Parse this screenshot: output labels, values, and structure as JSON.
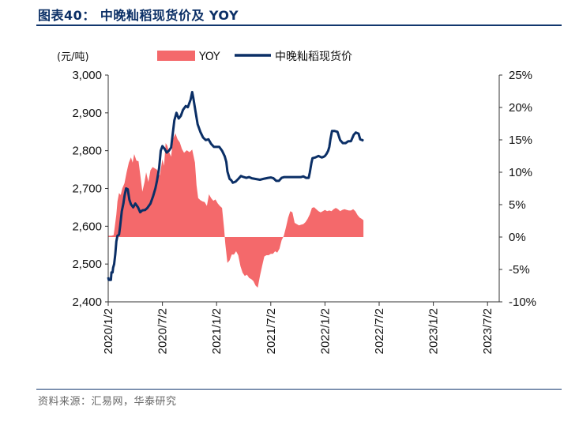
{
  "header": {
    "title": "图表40：  中晚籼稻现货价及 YOY"
  },
  "footer": {
    "source": "资料来源：汇易网，华泰研究"
  },
  "chart_data": {
    "type": "bar+line",
    "title": "中晚籼稻现货价及 YOY",
    "unit_left": "(元/吨)",
    "left_axis": {
      "min": 2400,
      "max": 3000,
      "ticks": [
        "2,400",
        "2,500",
        "2,600",
        "2,700",
        "2,800",
        "2,900",
        "3,000"
      ]
    },
    "right_axis": {
      "min": -10,
      "max": 25,
      "ticks": [
        "-10%",
        "-5%",
        "0%",
        "5%",
        "10%",
        "15%",
        "20%",
        "25%"
      ]
    },
    "x_ticks": [
      "2020/1/2",
      "2020/7/2",
      "2021/1/2",
      "2021/7/2",
      "2022/1/2",
      "2022/7/2",
      "2023/1/2",
      "2023/7/2"
    ],
    "legend": [
      {
        "name": "YOY",
        "color": "#f4696b",
        "kind": "bar"
      },
      {
        "name": "中晚籼稻现货价",
        "color": "#0b2f66",
        "kind": "line"
      }
    ],
    "series": [
      {
        "name": "中晚籼稻现货价",
        "axis": "left",
        "color": "#0b2f66",
        "points": [
          [
            0.0,
            2465
          ],
          [
            0.01,
            2458
          ],
          [
            0.05,
            2458
          ],
          [
            0.06,
            2478
          ],
          [
            0.08,
            2478
          ],
          [
            0.09,
            2490
          ],
          [
            0.11,
            2500
          ],
          [
            0.13,
            2525
          ],
          [
            0.15,
            2560
          ],
          [
            0.17,
            2575
          ],
          [
            0.2,
            2578
          ],
          [
            0.22,
            2600
          ],
          [
            0.25,
            2640
          ],
          [
            0.28,
            2660
          ],
          [
            0.3,
            2680
          ],
          [
            0.33,
            2700
          ],
          [
            0.36,
            2698
          ],
          [
            0.39,
            2670
          ],
          [
            0.42,
            2658
          ],
          [
            0.46,
            2650
          ],
          [
            0.5,
            2660
          ],
          [
            0.55,
            2650
          ],
          [
            0.59,
            2637
          ],
          [
            0.63,
            2642
          ],
          [
            0.68,
            2643
          ],
          [
            0.72,
            2648
          ],
          [
            0.78,
            2660
          ],
          [
            0.83,
            2680
          ],
          [
            0.87,
            2700
          ],
          [
            0.9,
            2720
          ],
          [
            0.94,
            2755
          ],
          [
            0.97,
            2800
          ],
          [
            1.0,
            2812
          ],
          [
            1.04,
            2805
          ],
          [
            1.08,
            2795
          ],
          [
            1.12,
            2800
          ],
          [
            1.16,
            2808
          ],
          [
            1.22,
            2880
          ],
          [
            1.26,
            2900
          ],
          [
            1.3,
            2885
          ],
          [
            1.34,
            2892
          ],
          [
            1.38,
            2908
          ],
          [
            1.43,
            2918
          ],
          [
            1.47,
            2915
          ],
          [
            1.52,
            2935
          ],
          [
            1.55,
            2955
          ],
          [
            1.57,
            2940
          ],
          [
            1.61,
            2905
          ],
          [
            1.65,
            2870
          ],
          [
            1.7,
            2850
          ],
          [
            1.75,
            2835
          ],
          [
            1.8,
            2828
          ],
          [
            1.85,
            2830
          ],
          [
            1.9,
            2818
          ],
          [
            1.95,
            2810
          ],
          [
            2.0,
            2810
          ],
          [
            2.05,
            2810
          ],
          [
            2.1,
            2800
          ],
          [
            2.15,
            2785
          ],
          [
            2.18,
            2770
          ],
          [
            2.2,
            2745
          ],
          [
            2.22,
            2735
          ],
          [
            2.24,
            2725
          ],
          [
            2.27,
            2722
          ],
          [
            2.3,
            2715
          ],
          [
            2.35,
            2718
          ],
          [
            2.4,
            2725
          ],
          [
            2.45,
            2733
          ],
          [
            2.5,
            2730
          ],
          [
            2.55,
            2728
          ],
          [
            2.6,
            2730
          ],
          [
            2.65,
            2727
          ],
          [
            2.72,
            2725
          ],
          [
            2.8,
            2723
          ],
          [
            2.88,
            2726
          ],
          [
            2.95,
            2728
          ],
          [
            3.0,
            2729
          ],
          [
            3.05,
            2727
          ],
          [
            3.1,
            2720
          ],
          [
            3.15,
            2720
          ],
          [
            3.2,
            2728
          ],
          [
            3.25,
            2730
          ],
          [
            3.32,
            2730
          ],
          [
            3.4,
            2730
          ],
          [
            3.5,
            2730
          ],
          [
            3.56,
            2730
          ],
          [
            3.6,
            2732
          ],
          [
            3.65,
            2728
          ],
          [
            3.7,
            2728
          ],
          [
            3.72,
            2742
          ],
          [
            3.75,
            2768
          ],
          [
            3.77,
            2780
          ],
          [
            3.82,
            2782
          ],
          [
            3.88,
            2786
          ],
          [
            3.94,
            2782
          ],
          [
            3.98,
            2784
          ],
          [
            4.0,
            2786
          ],
          [
            4.03,
            2792
          ],
          [
            4.06,
            2800
          ],
          [
            4.08,
            2810
          ],
          [
            4.1,
            2830
          ],
          [
            4.13,
            2852
          ],
          [
            4.18,
            2852
          ],
          [
            4.23,
            2850
          ],
          [
            4.28,
            2828
          ],
          [
            4.33,
            2820
          ],
          [
            4.38,
            2820
          ],
          [
            4.43,
            2825
          ],
          [
            4.48,
            2825
          ],
          [
            4.53,
            2842
          ],
          [
            4.57,
            2848
          ],
          [
            4.62,
            2845
          ],
          [
            4.65,
            2830
          ],
          [
            4.69,
            2828
          ],
          [
            4.71,
            2826
          ]
        ]
      },
      {
        "name": "YOY",
        "axis": "right",
        "color": "#f4696b",
        "points": [
          [
            0.0,
            0.2
          ],
          [
            0.06,
            0.2
          ],
          [
            0.1,
            0.3
          ],
          [
            0.12,
            1.5
          ],
          [
            0.15,
            3.5
          ],
          [
            0.17,
            5.5
          ],
          [
            0.2,
            6.8
          ],
          [
            0.23,
            6.5
          ],
          [
            0.26,
            7.5
          ],
          [
            0.3,
            8.3
          ],
          [
            0.34,
            10.0
          ],
          [
            0.38,
            11.5
          ],
          [
            0.42,
            12.3
          ],
          [
            0.45,
            11.5
          ],
          [
            0.48,
            12.8
          ],
          [
            0.52,
            11.8
          ],
          [
            0.56,
            11.7
          ],
          [
            0.6,
            9.0
          ],
          [
            0.63,
            7.0
          ],
          [
            0.67,
            8.5
          ],
          [
            0.7,
            10.0
          ],
          [
            0.74,
            8.5
          ],
          [
            0.78,
            10.3
          ],
          [
            0.82,
            10.8
          ],
          [
            0.86,
            10.6
          ],
          [
            0.9,
            10.4
          ],
          [
            0.95,
            9.5
          ],
          [
            1.0,
            12.0
          ],
          [
            1.03,
            11.0
          ],
          [
            1.06,
            14.5
          ],
          [
            1.09,
            14.1
          ],
          [
            1.12,
            13.2
          ],
          [
            1.16,
            12.4
          ],
          [
            1.2,
            15.2
          ],
          [
            1.24,
            16.0
          ],
          [
            1.28,
            15.1
          ],
          [
            1.32,
            14.6
          ],
          [
            1.36,
            13.6
          ],
          [
            1.4,
            13.0
          ],
          [
            1.45,
            13.4
          ],
          [
            1.5,
            13.1
          ],
          [
            1.55,
            13.5
          ],
          [
            1.6,
            11.5
          ],
          [
            1.63,
            8.0
          ],
          [
            1.66,
            6.0
          ],
          [
            1.7,
            5.7
          ],
          [
            1.74,
            5.5
          ],
          [
            1.78,
            5.4
          ],
          [
            1.82,
            4.8
          ],
          [
            1.86,
            6.6
          ],
          [
            1.9,
            6.0
          ],
          [
            1.94,
            5.6
          ],
          [
            1.98,
            5.8
          ],
          [
            2.02,
            5.2
          ],
          [
            2.06,
            4.8
          ],
          [
            2.1,
            4.5
          ],
          [
            2.14,
            1.2
          ],
          [
            2.16,
            -1.0
          ],
          [
            2.2,
            -4.0
          ],
          [
            2.24,
            -3.6
          ],
          [
            2.28,
            -2.7
          ],
          [
            2.32,
            -2.7
          ],
          [
            2.36,
            -2.2
          ],
          [
            2.4,
            -2.8
          ],
          [
            2.44,
            -4.5
          ],
          [
            2.48,
            -5.5
          ],
          [
            2.52,
            -6.0
          ],
          [
            2.56,
            -5.8
          ],
          [
            2.6,
            -6.3
          ],
          [
            2.64,
            -6.5
          ],
          [
            2.68,
            -6.8
          ],
          [
            2.72,
            -7.5
          ],
          [
            2.76,
            -7.8
          ],
          [
            2.8,
            -6.0
          ],
          [
            2.84,
            -4.5
          ],
          [
            2.88,
            -3.0
          ],
          [
            2.92,
            -2.8
          ],
          [
            2.96,
            -2.8
          ],
          [
            3.0,
            -2.6
          ],
          [
            3.04,
            -2.6
          ],
          [
            3.08,
            -2.2
          ],
          [
            3.12,
            -2.4
          ],
          [
            3.16,
            -1.8
          ],
          [
            3.2,
            -0.5
          ],
          [
            3.24,
            0.2
          ],
          [
            3.28,
            1.5
          ],
          [
            3.32,
            3.0
          ],
          [
            3.36,
            4.0
          ],
          [
            3.4,
            3.8
          ],
          [
            3.44,
            2.2
          ],
          [
            3.48,
            2.0
          ],
          [
            3.52,
            1.8
          ],
          [
            3.56,
            1.9
          ],
          [
            3.6,
            2.0
          ],
          [
            3.64,
            2.3
          ],
          [
            3.68,
            2.8
          ],
          [
            3.72,
            3.5
          ],
          [
            3.76,
            4.5
          ],
          [
            3.8,
            4.6
          ],
          [
            3.84,
            4.3
          ],
          [
            3.88,
            4.0
          ],
          [
            3.92,
            3.8
          ],
          [
            3.96,
            4.0
          ],
          [
            4.0,
            4.2
          ],
          [
            4.04,
            4.0
          ],
          [
            4.08,
            4.1
          ],
          [
            4.12,
            4.0
          ],
          [
            4.16,
            4.3
          ],
          [
            4.2,
            4.5
          ],
          [
            4.24,
            4.3
          ],
          [
            4.28,
            4.0
          ],
          [
            4.32,
            4.2
          ],
          [
            4.36,
            4.3
          ],
          [
            4.4,
            4.2
          ],
          [
            4.44,
            4.1
          ],
          [
            4.48,
            4.1
          ],
          [
            4.52,
            4.3
          ],
          [
            4.56,
            4.0
          ],
          [
            4.6,
            3.4
          ],
          [
            4.64,
            3.0
          ],
          [
            4.68,
            2.8
          ],
          [
            4.71,
            2.6
          ]
        ]
      }
    ]
  }
}
